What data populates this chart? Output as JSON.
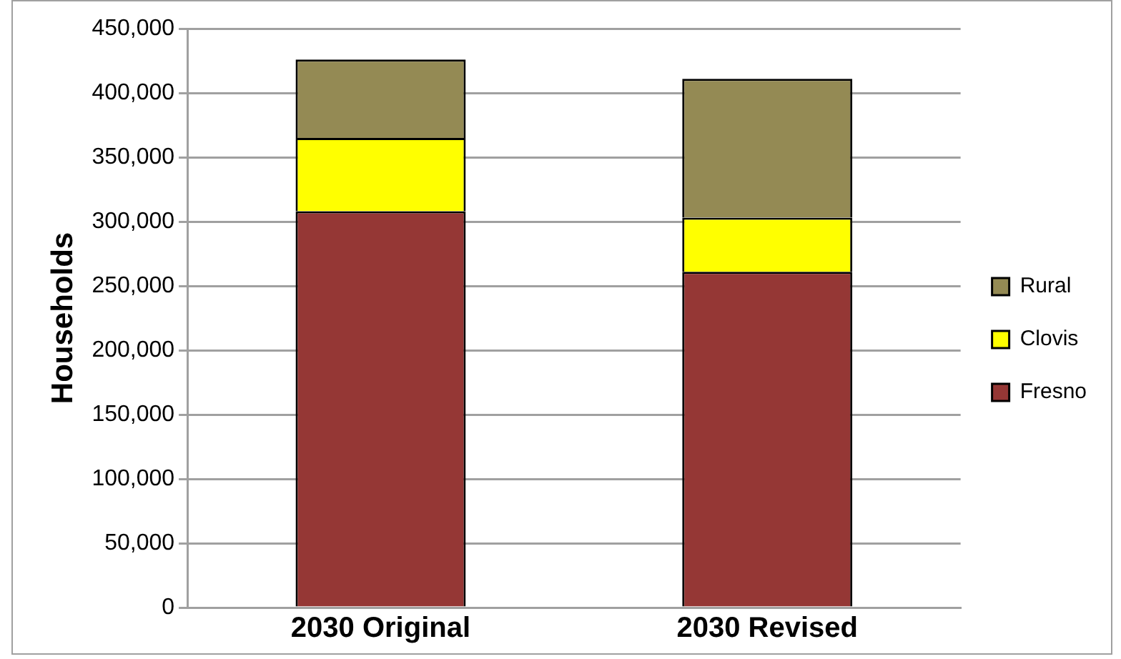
{
  "chart_data": {
    "type": "bar",
    "stacked": true,
    "ylabel": "Households",
    "categories": [
      "2030 Original",
      "2030 Revised"
    ],
    "series": [
      {
        "name": "Fresno",
        "color": "#953735",
        "values": [
          308000,
          261000
        ]
      },
      {
        "name": "Clovis",
        "color": "#ffff00",
        "values": [
          57000,
          42000
        ]
      },
      {
        "name": "Rural",
        "color": "#948a54",
        "values": [
          61000,
          108000
        ]
      }
    ],
    "ylim": [
      0,
      450000
    ],
    "yticks": [
      0,
      {
        "value": 50000,
        "label": "50,000"
      },
      {
        "value": 100000,
        "label": "100,000"
      },
      {
        "value": 150000,
        "label": "150,000"
      },
      {
        "value": 200000,
        "label": "200,000"
      },
      {
        "value": 250000,
        "label": "250,000"
      },
      {
        "value": 300000,
        "label": "300,000"
      },
      {
        "value": 350000,
        "label": "350,000"
      },
      {
        "value": 400000,
        "label": "400,000"
      },
      {
        "value": 450000,
        "label": "450,000"
      }
    ],
    "grid": "y",
    "legend": "right"
  }
}
